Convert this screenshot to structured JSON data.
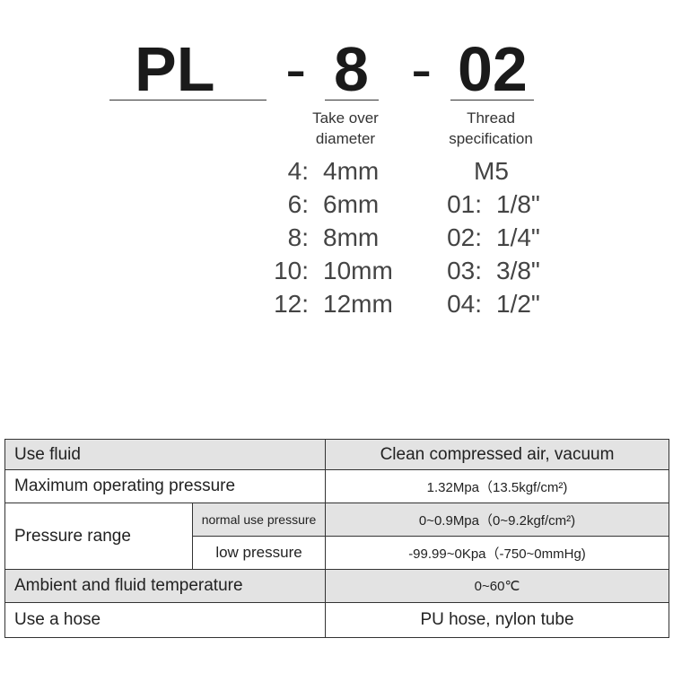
{
  "model": {
    "prefix": "PL",
    "dash1": "-",
    "diameter": "8",
    "dash2": "-",
    "thread": "02"
  },
  "labels": {
    "diameter": [
      "Take over",
      "diameter"
    ],
    "thread": [
      "Thread",
      "specification"
    ]
  },
  "diameters": [
    {
      "k": "4:",
      "v": "4mm"
    },
    {
      "k": "6:",
      "v": "6mm"
    },
    {
      "k": "8:",
      "v": "8mm"
    },
    {
      "k": "10:",
      "v": "10mm"
    },
    {
      "k": "12:",
      "v": "12mm"
    }
  ],
  "threads": [
    {
      "k": "",
      "v": "M5"
    },
    {
      "k": "01:",
      "v": "1/8\""
    },
    {
      "k": "02:",
      "v": "1/4\""
    },
    {
      "k": "03:",
      "v": "3/8\""
    },
    {
      "k": "04:",
      "v": "1/2\""
    }
  ],
  "specs": {
    "fluid": {
      "label": "Use fluid",
      "value": "Clean compressed air, vacuum"
    },
    "max_pressure": {
      "label": "Maximum operating pressure",
      "value": "1.32Mpa（13.5kgf/cm²)"
    },
    "pressure_range": {
      "label": "Pressure range",
      "normal": {
        "label": "normal use pressure",
        "value": "0~0.9Mpa（0~9.2kgf/cm²)"
      },
      "low": {
        "label": "low pressure",
        "value": "-99.99~0Kpa（-750~0mmHg)"
      }
    },
    "temperature": {
      "label": "Ambient and fluid temperature",
      "value": "0~60℃"
    },
    "hose": {
      "label": "Use a hose",
      "value": "PU hose, nylon tube"
    }
  }
}
